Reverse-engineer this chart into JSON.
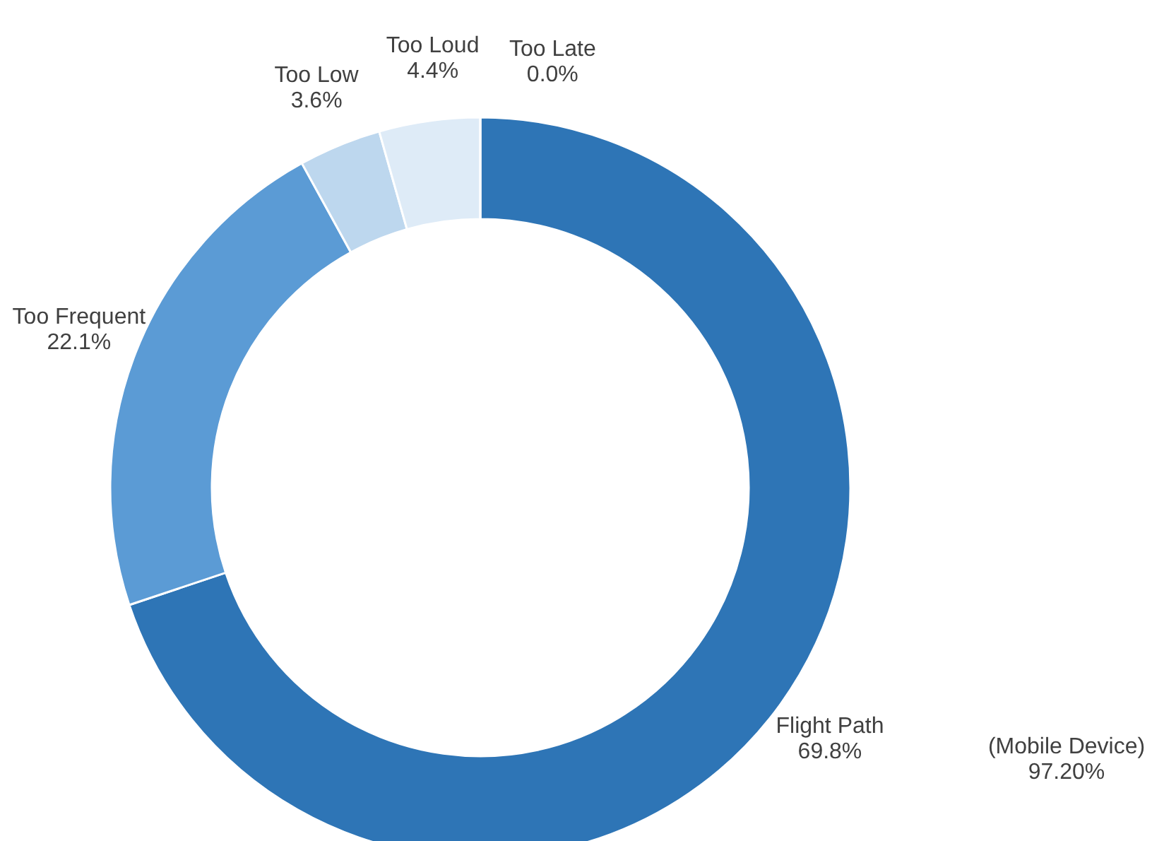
{
  "chart_data": {
    "type": "donut",
    "categories": [
      "Flight Path",
      "Too Frequent",
      "Too Low",
      "Too Loud",
      "Too Late"
    ],
    "values": [
      69.8,
      22.1,
      3.6,
      4.4,
      0.0
    ],
    "colors": [
      "#2e75b6",
      "#5b9bd5",
      "#bdd7ee",
      "#deebf7",
      "#9dc3e6"
    ],
    "value_labels": [
      "69.8%",
      "22.1%",
      "3.6%",
      "4.4%",
      "0.0%"
    ],
    "annotations": [
      "(Mobile Device)\n97.20%"
    ]
  }
}
